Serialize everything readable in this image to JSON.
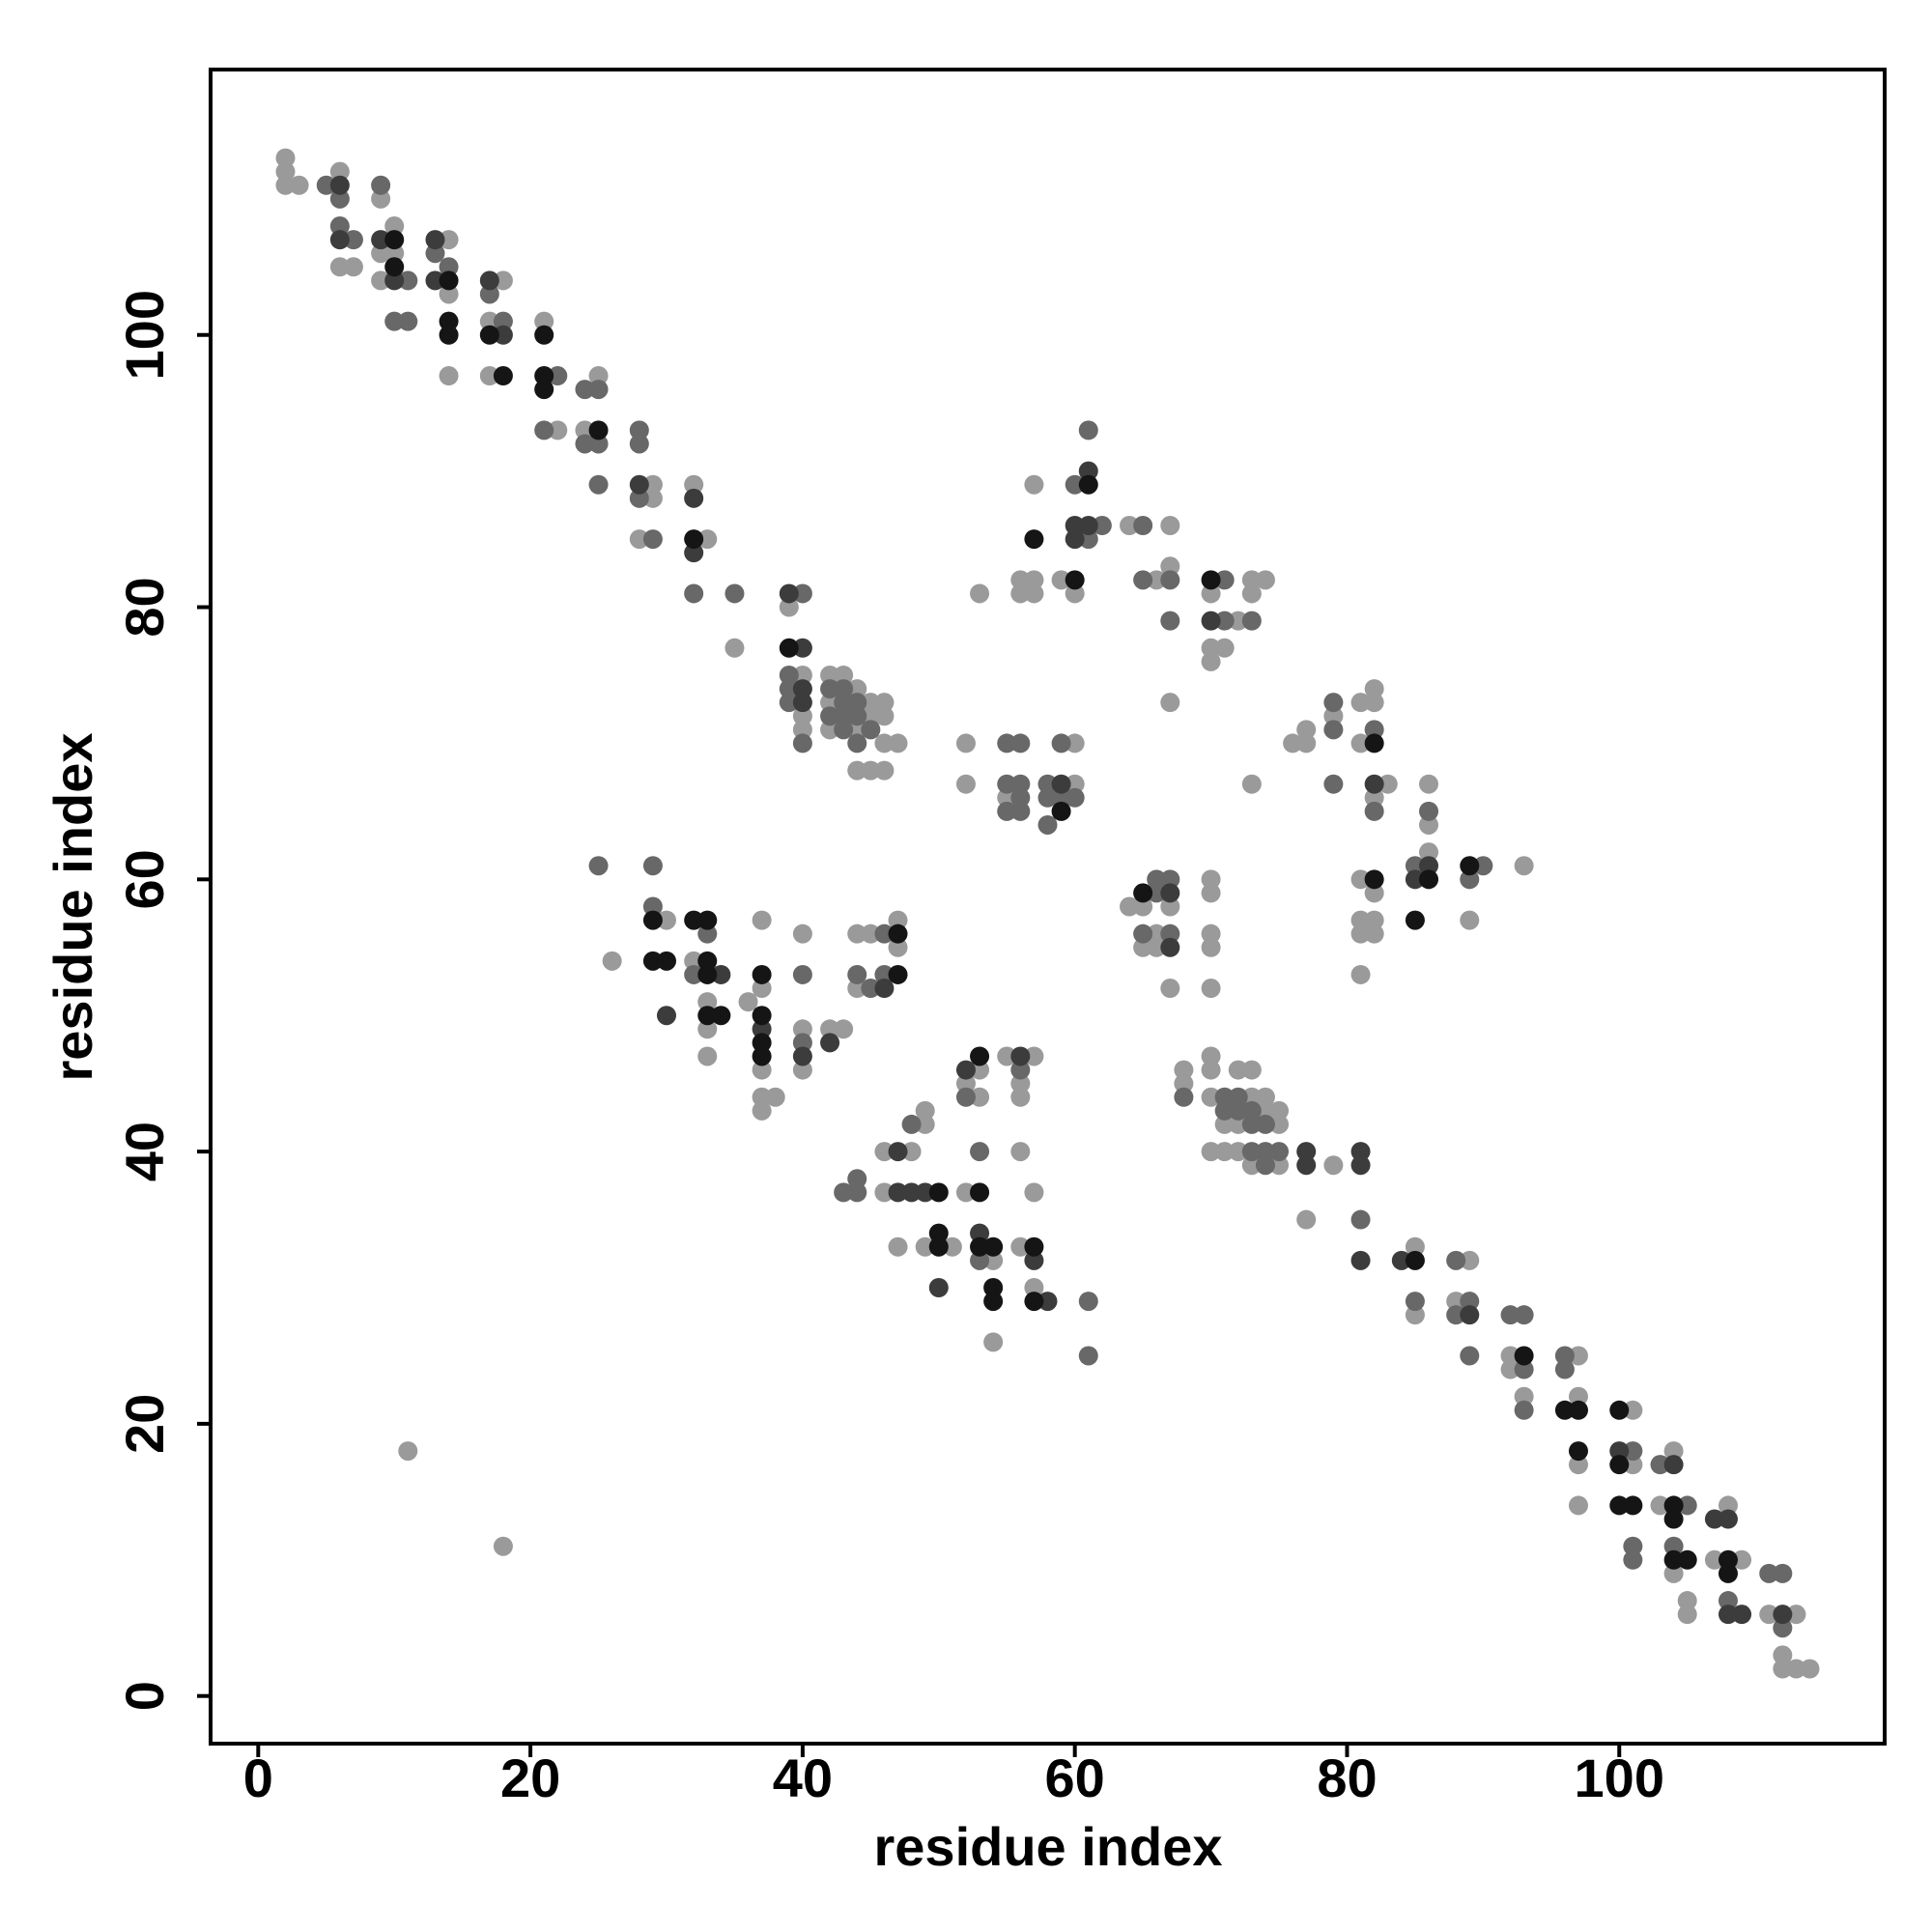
{
  "chart_data": {
    "type": "scatter",
    "xlabel": "residue index",
    "ylabel": "residue index",
    "xlim": [
      -3.5,
      119.5
    ],
    "ylim": [
      -3.5,
      119.5
    ],
    "xticks": [
      0,
      20,
      40,
      60,
      80,
      100
    ],
    "yticks": [
      0,
      20,
      40,
      60,
      80,
      100
    ],
    "series": [
      {
        "color": "#9a9a9a",
        "x": [
          2,
          2,
          2,
          3,
          6,
          6,
          7,
          9,
          9,
          10,
          10,
          9,
          14,
          14,
          14,
          18,
          17,
          17,
          21,
          22,
          25,
          24,
          29,
          28,
          29,
          32,
          33,
          35,
          39,
          40,
          40,
          40,
          42,
          43,
          44,
          42,
          45,
          46,
          45,
          46,
          42,
          44,
          46,
          47,
          44,
          45,
          46,
          57,
          64,
          67,
          53,
          56,
          57,
          56,
          57,
          59,
          60,
          66,
          67,
          73,
          74,
          70,
          73,
          72,
          70,
          71,
          70,
          67,
          52,
          60,
          52,
          60,
          55,
          76,
          77,
          77,
          79,
          81,
          82,
          82,
          81,
          83,
          82,
          73,
          86,
          86,
          86,
          93,
          81,
          82,
          81,
          82,
          81,
          82,
          89,
          81,
          30,
          37,
          40,
          44,
          45,
          47,
          47,
          26,
          32,
          44,
          37,
          33,
          36,
          33,
          33,
          37,
          40,
          42,
          43,
          40,
          37,
          38,
          37,
          55,
          57,
          53,
          52,
          56,
          53,
          56,
          49,
          49,
          46,
          48,
          56,
          46,
          52,
          57,
          47,
          49,
          51,
          54,
          56,
          57,
          54,
          64,
          65,
          67,
          70,
          70,
          66,
          70,
          65,
          66,
          70,
          67,
          70,
          68,
          68,
          70,
          70,
          72,
          73,
          70,
          73,
          74,
          74,
          75,
          71,
          72,
          75,
          70,
          71,
          72,
          73,
          75,
          79,
          77,
          85,
          85,
          89,
          88,
          92,
          92,
          93,
          97,
          97,
          97,
          97,
          101,
          101,
          104,
          103,
          104,
          105,
          105,
          108,
          107,
          109,
          111,
          113,
          112,
          112,
          113,
          114,
          11,
          18
        ],
        "y": [
          113,
          112,
          111,
          111,
          112,
          105,
          105,
          110,
          106,
          106,
          108,
          104,
          107,
          103,
          97,
          104,
          101,
          97,
          101,
          93,
          97,
          93,
          89,
          85,
          88,
          89,
          85,
          77,
          80,
          75,
          72,
          71,
          75,
          75,
          74,
          73,
          73,
          73,
          72,
          72,
          71,
          71,
          70,
          70,
          68,
          68,
          68,
          89,
          86,
          86,
          81,
          82,
          82,
          81,
          81,
          82,
          81,
          82,
          83,
          82,
          82,
          81,
          81,
          79,
          77,
          77,
          76,
          73,
          70,
          70,
          67,
          67,
          66,
          70,
          70,
          71,
          72,
          73,
          73,
          74,
          70,
          67,
          66,
          67,
          67,
          64,
          62,
          61,
          60,
          59,
          57,
          57,
          56,
          56,
          57,
          53,
          57,
          57,
          56,
          56,
          56,
          57,
          55,
          54,
          54,
          52,
          52,
          51,
          51,
          49,
          47,
          46,
          49,
          49,
          49,
          46,
          44,
          44,
          43,
          47,
          47,
          46,
          45,
          45,
          44,
          44,
          43,
          42,
          40,
          40,
          40,
          37,
          37,
          37,
          33,
          33,
          33,
          32,
          33,
          30,
          26,
          58,
          58,
          58,
          60,
          59,
          56,
          56,
          55,
          55,
          55,
          52,
          52,
          46,
          45,
          47,
          46,
          46,
          46,
          44,
          44,
          44,
          43,
          43,
          42,
          42,
          42,
          40,
          40,
          40,
          39,
          39,
          39,
          35,
          33,
          28,
          32,
          29,
          25,
          24,
          22,
          25,
          22,
          17,
          14,
          21,
          17,
          18,
          14,
          9,
          7,
          6,
          14,
          10,
          10,
          6,
          6,
          3,
          2,
          2,
          2,
          18,
          11
        ]
      },
      {
        "color": "#686868",
        "x": [
          5,
          6,
          6,
          7,
          9,
          11,
          10,
          11,
          13,
          14,
          17,
          18,
          22,
          21,
          24,
          25,
          24,
          25,
          25,
          28,
          28,
          28,
          29,
          32,
          35,
          40,
          39,
          39,
          39,
          40,
          42,
          43,
          43,
          44,
          42,
          43,
          44,
          43,
          45,
          44,
          61,
          60,
          62,
          61,
          65,
          65,
          67,
          67,
          71,
          71,
          73,
          55,
          56,
          59,
          55,
          56,
          58,
          56,
          58,
          59,
          60,
          55,
          56,
          58,
          79,
          79,
          79,
          82,
          82,
          86,
          85,
          90,
          89,
          25,
          29,
          29,
          33,
          46,
          32,
          40,
          44,
          46,
          45,
          40,
          56,
          52,
          48,
          53,
          44,
          43,
          44,
          53,
          61,
          61,
          66,
          67,
          66,
          65,
          67,
          68,
          71,
          72,
          71,
          72,
          73,
          73,
          74,
          73,
          74,
          75,
          74,
          81,
          85,
          88,
          89,
          88,
          89,
          92,
          93,
          93,
          93,
          96,
          96,
          101,
          101,
          101,
          103,
          105,
          104,
          108,
          111,
          112,
          112
        ],
        "y": [
          111,
          110,
          108,
          107,
          111,
          104,
          101,
          101,
          106,
          105,
          103,
          101,
          97,
          93,
          96,
          96,
          92,
          92,
          89,
          93,
          92,
          88,
          85,
          81,
          81,
          81,
          75,
          74,
          73,
          70,
          74,
          74,
          73,
          73,
          72,
          72,
          72,
          71,
          71,
          70,
          93,
          89,
          86,
          85,
          86,
          82,
          82,
          79,
          82,
          79,
          79,
          70,
          70,
          70,
          67,
          67,
          67,
          66,
          66,
          66,
          66,
          65,
          65,
          64,
          73,
          71,
          67,
          71,
          65,
          65,
          61,
          61,
          60,
          61,
          61,
          58,
          56,
          56,
          53,
          53,
          53,
          53,
          52,
          48,
          46,
          44,
          42,
          40,
          38,
          37,
          37,
          32,
          29,
          25,
          60,
          60,
          59,
          56,
          56,
          44,
          44,
          44,
          43,
          43,
          43,
          42,
          42,
          40,
          40,
          40,
          39,
          35,
          29,
          32,
          29,
          28,
          25,
          28,
          28,
          24,
          21,
          25,
          24,
          18,
          11,
          10,
          17,
          14,
          11,
          7,
          9,
          9,
          5
        ]
      },
      {
        "color": "#3c3c3c",
        "x": [
          6,
          6,
          9,
          10,
          13,
          13,
          17,
          18,
          28,
          32,
          32,
          39,
          40,
          40,
          40,
          61,
          60,
          61,
          60,
          70,
          59,
          82,
          86,
          85,
          34,
          46,
          30,
          37,
          42,
          40,
          52,
          56,
          47,
          47,
          48,
          49,
          53,
          57,
          50,
          58,
          67,
          67,
          77,
          77,
          81,
          81,
          81,
          84,
          89,
          100,
          104,
          107,
          108,
          108,
          109,
          112
        ],
        "y": [
          111,
          107,
          107,
          104,
          107,
          104,
          104,
          100,
          89,
          88,
          84,
          81,
          77,
          74,
          73,
          90,
          86,
          86,
          85,
          79,
          67,
          67,
          61,
          60,
          53,
          52,
          50,
          49,
          48,
          47,
          46,
          47,
          40,
          37,
          37,
          37,
          34,
          32,
          30,
          29,
          59,
          55,
          40,
          39,
          40,
          39,
          32,
          32,
          28,
          18,
          17,
          13,
          13,
          6,
          6,
          6
        ]
      },
      {
        "color": "#151515",
        "x": [
          10,
          10,
          14,
          14,
          14,
          17,
          18,
          21,
          21,
          21,
          25,
          32,
          39,
          61,
          57,
          60,
          70,
          59,
          82,
          86,
          89,
          82,
          85,
          29,
          32,
          33,
          47,
          29,
          30,
          33,
          33,
          37,
          47,
          33,
          34,
          37,
          37,
          37,
          53,
          50,
          53,
          50,
          50,
          53,
          54,
          57,
          54,
          54,
          57,
          65,
          85,
          93,
          96,
          97,
          97,
          100,
          100,
          100,
          101,
          104,
          104,
          104,
          105,
          108,
          108
        ],
        "y": [
          107,
          105,
          104,
          101,
          100,
          100,
          97,
          100,
          97,
          96,
          93,
          85,
          77,
          89,
          85,
          82,
          82,
          65,
          70,
          60,
          61,
          60,
          57,
          57,
          57,
          57,
          56,
          54,
          54,
          54,
          53,
          53,
          53,
          50,
          50,
          50,
          48,
          47,
          47,
          37,
          37,
          34,
          33,
          33,
          33,
          33,
          30,
          29,
          29,
          59,
          32,
          25,
          21,
          21,
          18,
          21,
          17,
          14,
          14,
          14,
          13,
          10,
          10,
          10,
          9
        ]
      }
    ]
  }
}
